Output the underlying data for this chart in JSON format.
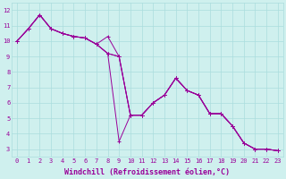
{
  "background_color": "#cff0ee",
  "grid_color": "#aadddd",
  "line_color": "#990099",
  "marker_color": "#990099",
  "xlabel": "Windchill (Refroidissement éolien,°C)",
  "xlabel_color": "#990099",
  "ylabel_ticks": [
    3,
    4,
    5,
    6,
    7,
    8,
    9,
    10,
    11,
    12
  ],
  "xtick_labels": [
    "0",
    "1",
    "2",
    "3",
    "4",
    "5",
    "6",
    "7",
    "8",
    "9",
    "10",
    "11",
    "12",
    "13",
    "14",
    "15",
    "16",
    "17",
    "18",
    "19",
    "20",
    "21",
    "22",
    "23"
  ],
  "xlim": [
    -0.5,
    23.5
  ],
  "ylim": [
    2.5,
    12.5
  ],
  "series": [
    [
      10.0,
      10.8,
      11.7,
      10.8,
      10.5,
      10.3,
      10.2,
      9.8,
      10.3,
      9.0,
      5.2,
      5.2,
      6.0,
      6.5,
      7.6,
      6.8,
      6.5,
      5.3,
      5.3,
      4.5,
      3.4,
      3.0,
      3.0,
      2.9
    ],
    [
      10.0,
      10.8,
      11.7,
      10.8,
      10.5,
      10.3,
      10.2,
      9.8,
      9.2,
      3.5,
      5.2,
      5.2,
      6.0,
      6.5,
      7.6,
      6.8,
      6.5,
      5.3,
      5.3,
      4.5,
      3.4,
      3.0,
      3.0,
      2.9
    ],
    [
      10.0,
      10.8,
      11.7,
      10.8,
      10.5,
      10.3,
      10.2,
      9.8,
      9.2,
      9.0,
      5.2,
      5.2,
      6.0,
      6.5,
      7.6,
      6.8,
      6.5,
      5.3,
      5.3,
      4.5,
      3.4,
      3.0,
      3.0,
      2.9
    ],
    [
      10.0,
      10.8,
      11.7,
      10.8,
      10.5,
      10.3,
      10.2,
      9.8,
      9.2,
      9.0,
      5.2,
      5.2,
      6.0,
      6.5,
      7.6,
      6.8,
      6.5,
      5.3,
      5.3,
      4.5,
      3.4,
      3.0,
      3.0,
      2.9
    ]
  ],
  "tick_fontsize": 5.0,
  "axis_fontsize": 6.0
}
